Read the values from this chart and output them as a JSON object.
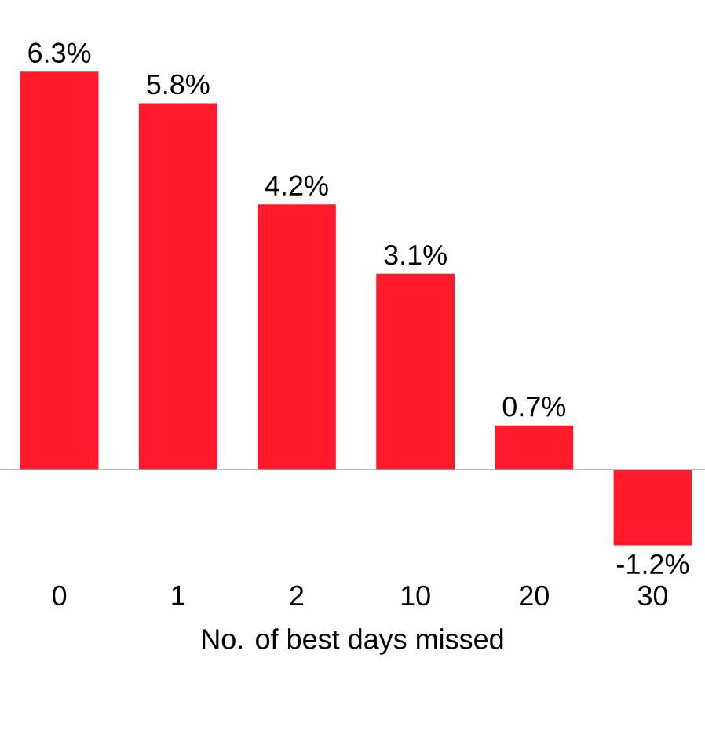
{
  "chart_data": {
    "type": "bar",
    "categories": [
      "0",
      "1",
      "2",
      "10",
      "20",
      "30"
    ],
    "values": [
      6.3,
      5.8,
      4.2,
      3.1,
      0.7,
      -1.2
    ],
    "value_labels": [
      "6.3%",
      "5.8%",
      "4.2%",
      "3.1%",
      "0.7%",
      "-1.2%"
    ],
    "color": "#ff1a2b",
    "xlabel": "No. of best days missed"
  }
}
